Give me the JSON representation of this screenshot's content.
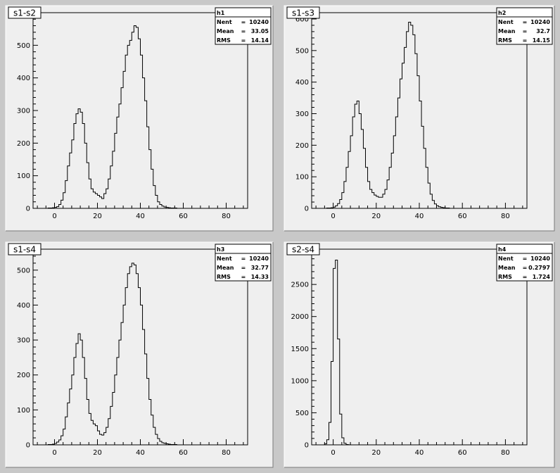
{
  "chart_data": [
    {
      "type": "histogram",
      "title": "s1-s2",
      "stats": {
        "name": "h1",
        "rows": [
          {
            "label": "Nent",
            "value": "10240"
          },
          {
            "label": "Mean",
            "value": "33.05"
          },
          {
            "label": "RMS",
            "value": "14.14"
          }
        ]
      },
      "xlim": [
        -10,
        90
      ],
      "ylim": [
        0,
        600
      ],
      "xticks": [
        "0",
        "20",
        "40",
        "60",
        "80"
      ],
      "xtick_values": [
        0,
        20,
        40,
        60,
        80
      ],
      "yticks": [
        "0",
        "100",
        "200",
        "300",
        "400",
        "500"
      ],
      "ytick_values": [
        0,
        100,
        200,
        300,
        400,
        500
      ],
      "bin_width": 1,
      "bins_start": -3,
      "counts": [
        1,
        1,
        2,
        3,
        5,
        12,
        25,
        48,
        85,
        130,
        170,
        210,
        260,
        290,
        305,
        295,
        260,
        200,
        140,
        90,
        60,
        50,
        45,
        40,
        35,
        30,
        45,
        60,
        90,
        130,
        175,
        230,
        280,
        320,
        370,
        420,
        470,
        500,
        515,
        540,
        560,
        555,
        520,
        470,
        400,
        330,
        250,
        180,
        120,
        70,
        40,
        20,
        12,
        7,
        4,
        3,
        2,
        1,
        1,
        1
      ]
    },
    {
      "type": "histogram",
      "title": "s1-s3",
      "stats": {
        "name": "h2",
        "rows": [
          {
            "label": "Nent",
            "value": "10240"
          },
          {
            "label": "Mean",
            "value": "32.7"
          },
          {
            "label": "RMS",
            "value": "14.15"
          }
        ]
      },
      "xlim": [
        -10,
        90
      ],
      "ylim": [
        0,
        620
      ],
      "xticks": [
        "0",
        "20",
        "40",
        "60",
        "80"
      ],
      "xtick_values": [
        0,
        20,
        40,
        60,
        80
      ],
      "yticks": [
        "0",
        "100",
        "200",
        "300",
        "400",
        "500",
        "600"
      ],
      "ytick_values": [
        0,
        100,
        200,
        300,
        400,
        500,
        600
      ],
      "bin_width": 1,
      "bins_start": -3,
      "counts": [
        1,
        1,
        2,
        4,
        8,
        15,
        28,
        50,
        85,
        130,
        180,
        230,
        290,
        330,
        340,
        300,
        250,
        190,
        130,
        85,
        60,
        50,
        42,
        38,
        35,
        35,
        45,
        60,
        90,
        130,
        175,
        230,
        290,
        350,
        410,
        460,
        510,
        560,
        590,
        580,
        550,
        490,
        420,
        340,
        260,
        190,
        130,
        80,
        45,
        25,
        14,
        8,
        5,
        3,
        2,
        1,
        1
      ]
    },
    {
      "type": "histogram",
      "title": "s1-s4",
      "stats": {
        "name": "h3",
        "rows": [
          {
            "label": "Nent",
            "value": "10240"
          },
          {
            "label": "Mean",
            "value": "32.77"
          },
          {
            "label": "RMS",
            "value": "14.33"
          }
        ]
      },
      "xlim": [
        -10,
        90
      ],
      "ylim": [
        0,
        560
      ],
      "xticks": [
        "0",
        "20",
        "40",
        "60",
        "80"
      ],
      "xtick_values": [
        0,
        20,
        40,
        60,
        80
      ],
      "yticks": [
        "0",
        "100",
        "200",
        "300",
        "400",
        "500"
      ],
      "ytick_values": [
        0,
        100,
        200,
        300,
        400,
        500
      ],
      "bin_width": 1,
      "bins_start": -3,
      "counts": [
        1,
        1,
        2,
        4,
        8,
        14,
        26,
        45,
        80,
        120,
        160,
        200,
        250,
        290,
        318,
        300,
        250,
        190,
        130,
        90,
        70,
        60,
        55,
        40,
        30,
        28,
        35,
        50,
        75,
        110,
        150,
        200,
        250,
        300,
        350,
        400,
        450,
        490,
        510,
        520,
        515,
        490,
        450,
        400,
        330,
        260,
        190,
        130,
        85,
        50,
        30,
        18,
        10,
        6,
        4,
        3,
        2,
        1,
        1,
        1
      ]
    },
    {
      "type": "histogram",
      "title": "s2-s4",
      "stats": {
        "name": "h4",
        "rows": [
          {
            "label": "Nent",
            "value": "10240"
          },
          {
            "label": "Mean",
            "value": "0.2797"
          },
          {
            "label": "RMS",
            "value": "1.724"
          }
        ]
      },
      "xlim": [
        -10,
        90
      ],
      "ylim": [
        0,
        3050
      ],
      "xticks": [
        "0",
        "20",
        "40",
        "60",
        "80"
      ],
      "xtick_values": [
        0,
        20,
        40,
        60,
        80
      ],
      "yticks": [
        "0",
        "500",
        "1000",
        "1500",
        "2000",
        "2500",
        "3000"
      ],
      "ytick_values": [
        0,
        500,
        1000,
        1500,
        2000,
        2500,
        3000
      ],
      "bin_width": 1,
      "bins_start": -4,
      "counts": [
        15,
        80,
        350,
        1300,
        2750,
        2880,
        1650,
        480,
        110,
        25,
        6,
        2
      ]
    }
  ]
}
